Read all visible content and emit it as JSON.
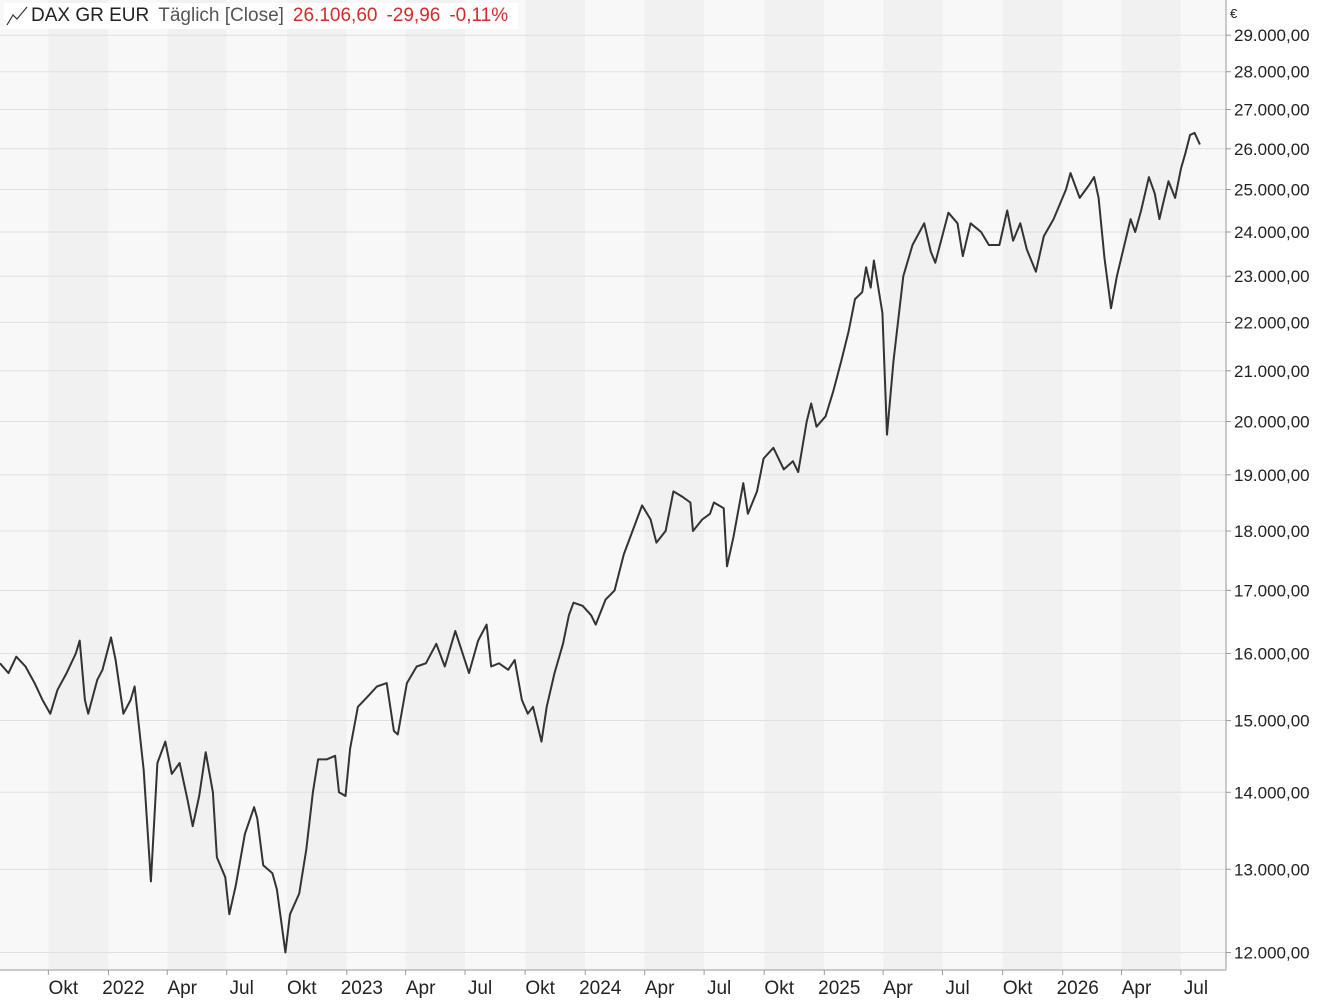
{
  "legend": {
    "icon": "line-chart-icon",
    "name": "DAX GR EUR",
    "frequency": "Täglich [Close]",
    "last": "26.106,60",
    "change": "-29,96",
    "change_pct": "-0,11%"
  },
  "currency": "€",
  "colors": {
    "line": "#333333",
    "change": "#d42a2a",
    "band_light": "#f8f8f8",
    "band_dark": "#f1f1f1",
    "grid": "#e0e0e0"
  },
  "chart_data": {
    "type": "line",
    "title": "DAX GR EUR",
    "xlabel": "",
    "ylabel": "",
    "y_scale": "log",
    "ylim": [
      11800,
      30000
    ],
    "x_range": [
      "2021-07-19",
      "2026-09-08"
    ],
    "grid": true,
    "legend_position": "top-left",
    "y_ticks": [
      {
        "value": 12000,
        "label": "12.000,00"
      },
      {
        "value": 13000,
        "label": "13.000,00"
      },
      {
        "value": 14000,
        "label": "14.000,00"
      },
      {
        "value": 15000,
        "label": "15.000,00"
      },
      {
        "value": 16000,
        "label": "16.000,00"
      },
      {
        "value": 17000,
        "label": "17.000,00"
      },
      {
        "value": 18000,
        "label": "18.000,00"
      },
      {
        "value": 19000,
        "label": "19.000,00"
      },
      {
        "value": 20000,
        "label": "20.000,00"
      },
      {
        "value": 21000,
        "label": "21.000,00"
      },
      {
        "value": 22000,
        "label": "22.000,00"
      },
      {
        "value": 23000,
        "label": "23.000,00"
      },
      {
        "value": 24000,
        "label": "24.000,00"
      },
      {
        "value": 25000,
        "label": "25.000,00"
      },
      {
        "value": 26000,
        "label": "26.000,00"
      },
      {
        "value": 27000,
        "label": "27.000,00"
      },
      {
        "value": 28000,
        "label": "28.000,00"
      },
      {
        "value": 29000,
        "label": "29.000,00"
      }
    ],
    "x_ticks": [
      {
        "date": "2021-10-01",
        "label": "Okt"
      },
      {
        "date": "2022-01-01",
        "label": "2022"
      },
      {
        "date": "2022-04-01",
        "label": "Apr"
      },
      {
        "date": "2022-07-01",
        "label": "Jul"
      },
      {
        "date": "2022-10-01",
        "label": "Okt"
      },
      {
        "date": "2023-01-01",
        "label": "2023"
      },
      {
        "date": "2023-04-01",
        "label": "Apr"
      },
      {
        "date": "2023-07-01",
        "label": "Jul"
      },
      {
        "date": "2023-10-01",
        "label": "Okt"
      },
      {
        "date": "2024-01-01",
        "label": "2024"
      },
      {
        "date": "2024-04-01",
        "label": "Apr"
      },
      {
        "date": "2024-07-01",
        "label": "Jul"
      },
      {
        "date": "2024-10-01",
        "label": "Okt"
      },
      {
        "date": "2025-01-01",
        "label": "2025"
      },
      {
        "date": "2025-04-01",
        "label": "Apr"
      },
      {
        "date": "2025-07-01",
        "label": "Jul"
      },
      {
        "date": "2025-10-01",
        "label": "Okt"
      },
      {
        "date": "2026-01-01",
        "label": "2026"
      },
      {
        "date": "2026-04-01",
        "label": "Apr"
      },
      {
        "date": "2026-07-01",
        "label": "Jul"
      }
    ],
    "series": [
      {
        "name": "DAX GR EUR",
        "points": [
          [
            "2021-07-19",
            15850
          ],
          [
            "2021-08-01",
            15700
          ],
          [
            "2021-08-13",
            15950
          ],
          [
            "2021-08-27",
            15800
          ],
          [
            "2021-09-10",
            15550
          ],
          [
            "2021-09-22",
            15300
          ],
          [
            "2021-10-04",
            15100
          ],
          [
            "2021-10-15",
            15450
          ],
          [
            "2021-10-29",
            15700
          ],
          [
            "2021-11-12",
            16000
          ],
          [
            "2021-11-18",
            16200
          ],
          [
            "2021-11-26",
            15300
          ],
          [
            "2021-12-01",
            15100
          ],
          [
            "2021-12-15",
            15600
          ],
          [
            "2021-12-23",
            15750
          ],
          [
            "2022-01-05",
            16250
          ],
          [
            "2022-01-12",
            15900
          ],
          [
            "2022-01-24",
            15100
          ],
          [
            "2022-02-04",
            15300
          ],
          [
            "2022-02-10",
            15500
          ],
          [
            "2022-02-24",
            14300
          ],
          [
            "2022-03-07",
            12850
          ],
          [
            "2022-03-17",
            14400
          ],
          [
            "2022-03-29",
            14700
          ],
          [
            "2022-04-08",
            14250
          ],
          [
            "2022-04-20",
            14400
          ],
          [
            "2022-05-02",
            13900
          ],
          [
            "2022-05-10",
            13550
          ],
          [
            "2022-05-20",
            13950
          ],
          [
            "2022-05-30",
            14550
          ],
          [
            "2022-06-10",
            14000
          ],
          [
            "2022-06-16",
            13150
          ],
          [
            "2022-06-29",
            12900
          ],
          [
            "2022-07-05",
            12450
          ],
          [
            "2022-07-15",
            12800
          ],
          [
            "2022-07-29",
            13450
          ],
          [
            "2022-08-12",
            13800
          ],
          [
            "2022-08-17",
            13650
          ],
          [
            "2022-08-26",
            13050
          ],
          [
            "2022-09-09",
            12950
          ],
          [
            "2022-09-16",
            12750
          ],
          [
            "2022-09-29",
            12000
          ],
          [
            "2022-10-06",
            12450
          ],
          [
            "2022-10-20",
            12700
          ],
          [
            "2022-10-31",
            13250
          ],
          [
            "2022-11-10",
            14000
          ],
          [
            "2022-11-18",
            14450
          ],
          [
            "2022-12-01",
            14450
          ],
          [
            "2022-12-14",
            14500
          ],
          [
            "2022-12-20",
            14000
          ],
          [
            "2022-12-30",
            13950
          ],
          [
            "2023-01-06",
            14600
          ],
          [
            "2023-01-18",
            15200
          ],
          [
            "2023-02-02",
            15350
          ],
          [
            "2023-02-16",
            15500
          ],
          [
            "2023-03-03",
            15550
          ],
          [
            "2023-03-14",
            14850
          ],
          [
            "2023-03-20",
            14800
          ],
          [
            "2023-04-03",
            15550
          ],
          [
            "2023-04-18",
            15800
          ],
          [
            "2023-05-02",
            15850
          ],
          [
            "2023-05-18",
            16150
          ],
          [
            "2023-05-31",
            15800
          ],
          [
            "2023-06-16",
            16350
          ],
          [
            "2023-07-07",
            15700
          ],
          [
            "2023-07-21",
            16200
          ],
          [
            "2023-08-03",
            16450
          ],
          [
            "2023-08-10",
            15800
          ],
          [
            "2023-08-22",
            15850
          ],
          [
            "2023-09-05",
            15750
          ],
          [
            "2023-09-15",
            15900
          ],
          [
            "2023-09-26",
            15300
          ],
          [
            "2023-10-05",
            15100
          ],
          [
            "2023-10-13",
            15200
          ],
          [
            "2023-10-26",
            14700
          ],
          [
            "2023-11-03",
            15200
          ],
          [
            "2023-11-15",
            15700
          ],
          [
            "2023-11-28",
            16150
          ],
          [
            "2023-12-07",
            16600
          ],
          [
            "2023-12-14",
            16800
          ],
          [
            "2023-12-28",
            16750
          ],
          [
            "2024-01-10",
            16600
          ],
          [
            "2024-01-17",
            16450
          ],
          [
            "2024-02-01",
            16850
          ],
          [
            "2024-02-15",
            17000
          ],
          [
            "2024-02-29",
            17600
          ],
          [
            "2024-03-15",
            18050
          ],
          [
            "2024-03-28",
            18450
          ],
          [
            "2024-04-10",
            18200
          ],
          [
            "2024-04-19",
            17800
          ],
          [
            "2024-05-03",
            18000
          ],
          [
            "2024-05-15",
            18700
          ],
          [
            "2024-05-29",
            18600
          ],
          [
            "2024-06-10",
            18500
          ],
          [
            "2024-06-14",
            18000
          ],
          [
            "2024-06-28",
            18200
          ],
          [
            "2024-07-10",
            18300
          ],
          [
            "2024-07-16",
            18500
          ],
          [
            "2024-07-31",
            18400
          ],
          [
            "2024-08-05",
            17400
          ],
          [
            "2024-08-15",
            17900
          ],
          [
            "2024-08-30",
            18850
          ],
          [
            "2024-09-06",
            18300
          ],
          [
            "2024-09-20",
            18700
          ],
          [
            "2024-09-30",
            19300
          ],
          [
            "2024-10-15",
            19500
          ],
          [
            "2024-10-31",
            19100
          ],
          [
            "2024-11-14",
            19250
          ],
          [
            "2024-11-22",
            19050
          ],
          [
            "2024-12-05",
            20000
          ],
          [
            "2024-12-12",
            20350
          ],
          [
            "2024-12-20",
            19900
          ],
          [
            "2025-01-03",
            20100
          ],
          [
            "2025-01-15",
            20600
          ],
          [
            "2025-01-27",
            21200
          ],
          [
            "2025-02-07",
            21800
          ],
          [
            "2025-02-17",
            22500
          ],
          [
            "2025-02-28",
            22650
          ],
          [
            "2025-03-06",
            23200
          ],
          [
            "2025-03-13",
            22750
          ],
          [
            "2025-03-18",
            23350
          ],
          [
            "2025-03-31",
            22200
          ],
          [
            "2025-04-07",
            19750
          ],
          [
            "2025-04-17",
            21200
          ],
          [
            "2025-05-02",
            23000
          ],
          [
            "2025-05-16",
            23700
          ],
          [
            "2025-06-03",
            24200
          ],
          [
            "2025-06-13",
            23550
          ],
          [
            "2025-06-20",
            23300
          ],
          [
            "2025-07-10",
            24450
          ],
          [
            "2025-07-24",
            24200
          ],
          [
            "2025-08-01",
            23450
          ],
          [
            "2025-08-13",
            24200
          ],
          [
            "2025-08-29",
            24000
          ],
          [
            "2025-09-10",
            23700
          ],
          [
            "2025-09-26",
            23700
          ],
          [
            "2025-10-08",
            24500
          ],
          [
            "2025-10-17",
            23800
          ],
          [
            "2025-10-28",
            24200
          ],
          [
            "2025-11-07",
            23600
          ],
          [
            "2025-11-21",
            23100
          ],
          [
            "2025-12-03",
            23900
          ],
          [
            "2025-12-18",
            24300
          ],
          [
            "2026-01-06",
            25000
          ],
          [
            "2026-01-13",
            25400
          ],
          [
            "2026-01-27",
            24800
          ],
          [
            "2026-02-10",
            25100
          ],
          [
            "2026-02-18",
            25300
          ],
          [
            "2026-02-25",
            24800
          ],
          [
            "2026-03-06",
            23400
          ],
          [
            "2026-03-16",
            22300
          ],
          [
            "2026-03-25",
            23000
          ],
          [
            "2026-04-07",
            23800
          ],
          [
            "2026-04-15",
            24300
          ],
          [
            "2026-04-22",
            24000
          ],
          [
            "2026-05-01",
            24500
          ],
          [
            "2026-05-13",
            25300
          ],
          [
            "2026-05-22",
            24900
          ],
          [
            "2026-05-29",
            24300
          ],
          [
            "2026-06-05",
            24750
          ],
          [
            "2026-06-12",
            25200
          ],
          [
            "2026-06-22",
            24800
          ],
          [
            "2026-07-01",
            25500
          ],
          [
            "2026-07-08",
            25900
          ],
          [
            "2026-07-15",
            26350
          ],
          [
            "2026-07-22",
            26400
          ],
          [
            "2026-07-30",
            26106.6
          ]
        ]
      }
    ]
  }
}
